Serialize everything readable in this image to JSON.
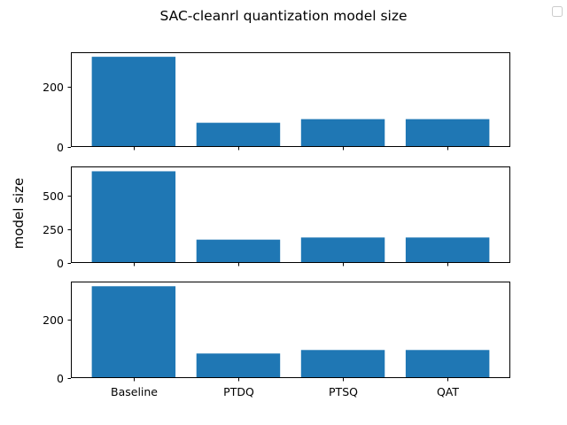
{
  "chart_data": {
    "type": "bar",
    "title": "SAC-cleanrl quantization model size",
    "ylabel": "model size",
    "xlabel": "",
    "categories": [
      "Baseline",
      "PTDQ",
      "PTSQ",
      "QAT"
    ],
    "grid": false,
    "legend": {
      "placement": "top-right",
      "entries": []
    },
    "colors": {
      "bar": "#1f77b4",
      "axis": "#000000",
      "background": "#ffffff"
    },
    "subplots": [
      {
        "values": [
          298,
          80,
          92,
          92
        ],
        "ylim": [
          0,
          313
        ],
        "yticks": [
          0,
          200
        ]
      },
      {
        "values": [
          684,
          174,
          190,
          190
        ],
        "ylim": [
          0,
          720
        ],
        "yticks": [
          0,
          250,
          500
        ]
      },
      {
        "values": [
          314,
          84,
          96,
          96
        ],
        "ylim": [
          0,
          330
        ],
        "yticks": [
          0,
          200
        ]
      }
    ]
  }
}
